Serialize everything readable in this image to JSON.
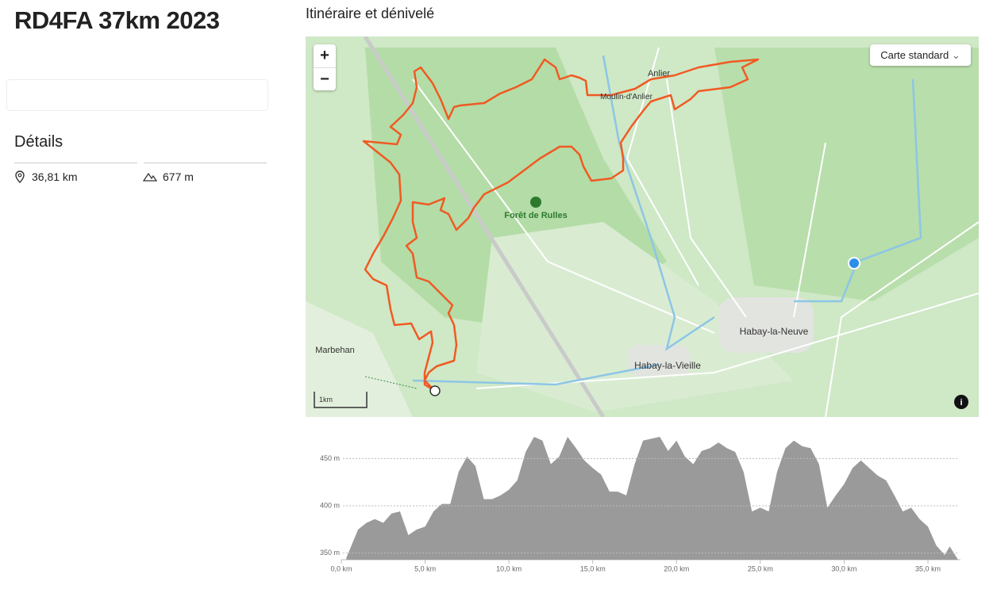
{
  "header": {
    "title": "RD4FA 37km 2023"
  },
  "details": {
    "heading": "Détails",
    "distance": "36,81 km",
    "elevation_gain": "677 m"
  },
  "map": {
    "heading": "Itinéraire et dénivelé",
    "layer_button": "Carte standard",
    "zoom_in": "+",
    "zoom_out": "−",
    "scale": "1km",
    "labels": [
      "Anlier",
      "Moulin-d'Anlier",
      "Forêt de Rulles",
      "Marbehan",
      "Habay-la-Neuve",
      "Habay-la-Vieille"
    ]
  },
  "chart_data": {
    "type": "area",
    "x": [
      0.3,
      1.0,
      1.5,
      2.0,
      2.5,
      3.0,
      3.5,
      4.0,
      4.5,
      5.0,
      5.5,
      6.0,
      6.5,
      7.0,
      7.5,
      8.0,
      8.5,
      9.0,
      9.5,
      10.0,
      10.5,
      11.0,
      11.5,
      12.0,
      12.5,
      13.0,
      13.5,
      14.0,
      14.5,
      15.0,
      15.5,
      16.0,
      16.5,
      17.0,
      17.5,
      18.0,
      18.5,
      19.0,
      19.5,
      20.0,
      20.5,
      21.0,
      21.5,
      22.0,
      22.5,
      23.0,
      23.5,
      24.0,
      24.5,
      25.0,
      25.5,
      26.0,
      26.5,
      27.0,
      27.5,
      28.0,
      28.5,
      29.0,
      29.5,
      30.0,
      30.5,
      31.0,
      31.5,
      32.0,
      32.5,
      33.0,
      33.5,
      34.0,
      34.5,
      35.0,
      35.5,
      36.0,
      36.3,
      36.8
    ],
    "values": [
      345,
      375,
      382,
      386,
      382,
      392,
      394,
      369,
      375,
      378,
      394,
      402,
      402,
      436,
      452,
      442,
      407,
      407,
      411,
      417,
      427,
      457,
      473,
      469,
      444,
      452,
      473,
      461,
      448,
      440,
      433,
      415,
      415,
      411,
      444,
      469,
      471,
      473,
      458,
      469,
      452,
      444,
      458,
      461,
      467,
      461,
      457,
      436,
      394,
      398,
      394,
      436,
      461,
      469,
      463,
      461,
      444,
      398,
      411,
      423,
      440,
      448,
      440,
      432,
      427,
      411,
      394,
      398,
      386,
      378,
      358,
      348,
      357,
      343
    ],
    "color": "#9a9a9a",
    "xlim": [
      0,
      36.8
    ],
    "ylim": [
      343,
      478
    ],
    "xticks": [
      {
        "value": 0,
        "label": "0,0 km"
      },
      {
        "value": 5,
        "label": "5,0 km"
      },
      {
        "value": 10,
        "label": "10,0 km"
      },
      {
        "value": 15,
        "label": "15,0 km"
      },
      {
        "value": 20,
        "label": "20,0 km"
      },
      {
        "value": 25,
        "label": "25,0 km"
      },
      {
        "value": 30,
        "label": "30,0 km"
      },
      {
        "value": 35,
        "label": "35,0 km"
      }
    ],
    "yticks": [
      {
        "value": 350,
        "label": "350 m"
      },
      {
        "value": 400,
        "label": "400 m"
      },
      {
        "value": 450,
        "label": "450 m"
      }
    ],
    "grid": true
  }
}
